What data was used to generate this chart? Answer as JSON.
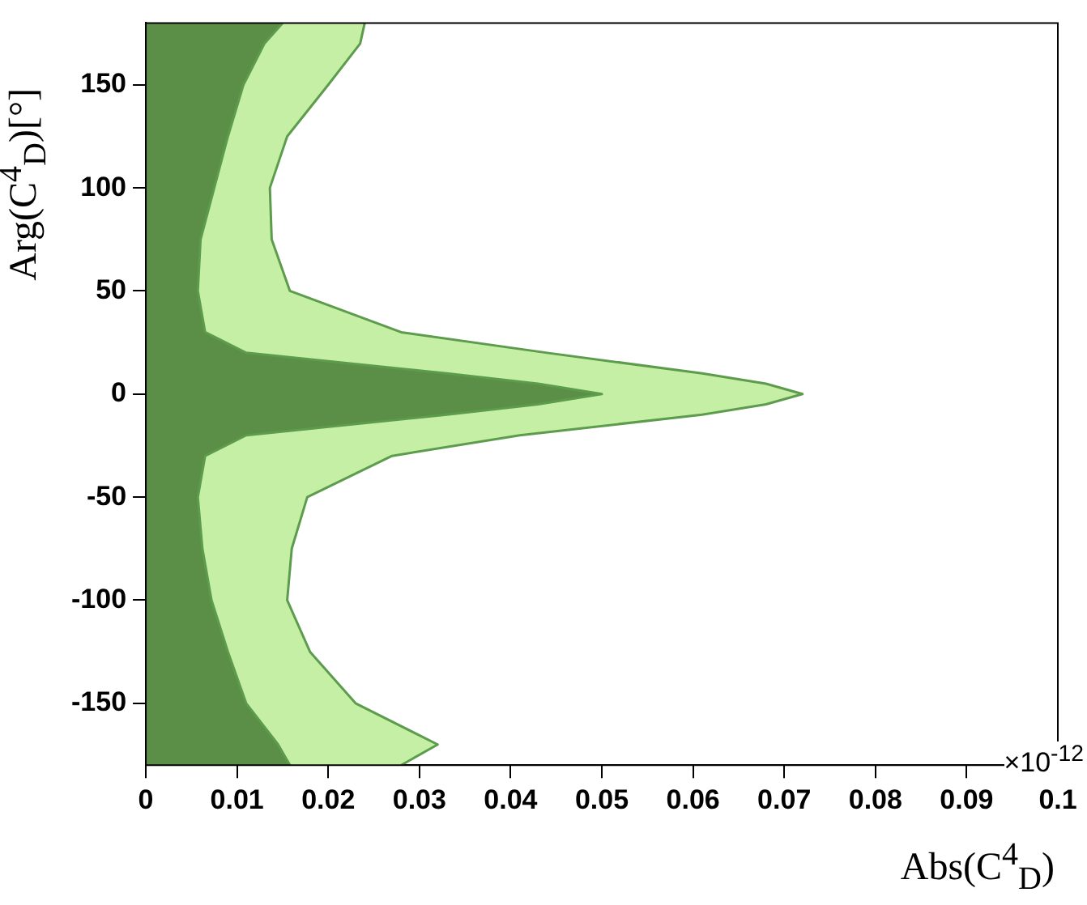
{
  "chart_data": {
    "type": "area",
    "orientation": "horizontal",
    "xlabel": "Abs(C$^{4}$$_{D}$)",
    "ylabel": "Arg(C$^{4}$$_{D}$)[°]",
    "annotations": [
      "×10$^{-12}$"
    ],
    "x": [
      -180,
      -170,
      -150,
      -125,
      -100,
      -75,
      -50,
      -30,
      -20,
      -10,
      -5,
      0,
      5,
      10,
      20,
      30,
      50,
      75,
      100,
      125,
      150,
      170,
      180
    ],
    "series": [
      {
        "color": "#c6efa6",
        "values": [
          0.028,
          0.032,
          0.023,
          0.018,
          0.0155,
          0.016,
          0.0177,
          0.027,
          0.041,
          0.061,
          0.068,
          0.072,
          0.068,
          0.061,
          0.044,
          0.028,
          0.0158,
          0.0138,
          0.0136,
          0.0155,
          0.02,
          0.0235,
          0.024
        ]
      },
      {
        "color": "#5b8f48",
        "values": [
          0.0158,
          0.0145,
          0.011,
          0.009,
          0.0072,
          0.0062,
          0.0057,
          0.0065,
          0.011,
          0.033,
          0.043,
          0.05,
          0.043,
          0.033,
          0.011,
          0.0065,
          0.0057,
          0.006,
          0.0075,
          0.009,
          0.0107,
          0.013,
          0.015
        ]
      }
    ],
    "xlim": [
      0,
      0.1
    ],
    "xticks": [
      0,
      0.01,
      0.02,
      0.03,
      0.04,
      0.05,
      0.06,
      0.07,
      0.08,
      0.09,
      0.1
    ],
    "ylim": [
      -180,
      180
    ],
    "yticks": [
      -150,
      -100,
      -50,
      0,
      50,
      100,
      150
    ],
    "grid": false,
    "legend": false
  }
}
